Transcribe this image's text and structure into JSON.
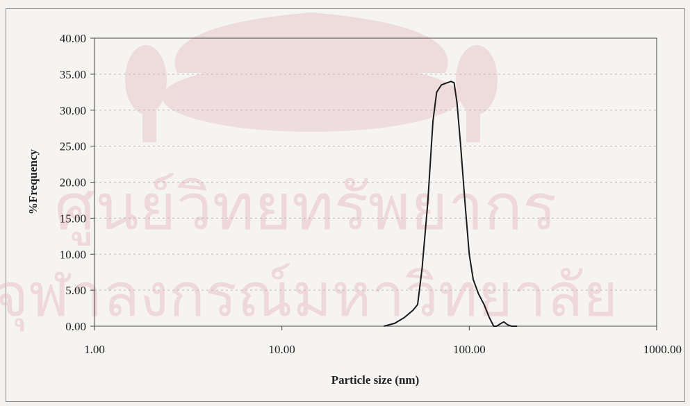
{
  "chart_data": {
    "type": "line",
    "title": "",
    "xlabel": "Particle size (nm)",
    "ylabel": "%Frequency",
    "x_scale": "log",
    "xlim": [
      1,
      1000
    ],
    "ylim": [
      0,
      40
    ],
    "grid": "horizontal-dashed",
    "x_ticks": [
      "1.00",
      "10.00",
      "100.00",
      "1000.00"
    ],
    "y_ticks": [
      "0.00",
      "5.00",
      "10.00",
      "15.00",
      "20.00",
      "25.00",
      "30.00",
      "35.00",
      "40.00"
    ],
    "series": [
      {
        "color": "#1a1a1a",
        "points": [
          [
            35,
            0.0
          ],
          [
            40,
            0.4
          ],
          [
            45,
            1.2
          ],
          [
            50,
            2.2
          ],
          [
            53,
            3.0
          ],
          [
            56,
            8.0
          ],
          [
            60,
            17.0
          ],
          [
            64,
            28.5
          ],
          [
            67,
            32.5
          ],
          [
            71,
            33.5
          ],
          [
            76,
            33.8
          ],
          [
            80,
            34.0
          ],
          [
            83,
            33.8
          ],
          [
            86,
            31.0
          ],
          [
            90,
            25.0
          ],
          [
            95,
            17.0
          ],
          [
            100,
            10.0
          ],
          [
            105,
            6.5
          ],
          [
            112,
            4.5
          ],
          [
            120,
            3.0
          ],
          [
            128,
            1.2
          ],
          [
            135,
            0.0
          ],
          [
            140,
            0.0
          ],
          [
            148,
            0.4
          ],
          [
            153,
            0.6
          ],
          [
            160,
            0.2
          ],
          [
            168,
            0.0
          ],
          [
            180,
            0.0
          ]
        ]
      }
    ]
  },
  "watermark": {
    "line1": "ศูนย์วิทยทรัพยากร",
    "line2": "จุฬาลงกรณ์มหาวิทยาลัย",
    "color": "#e8b8c0"
  }
}
